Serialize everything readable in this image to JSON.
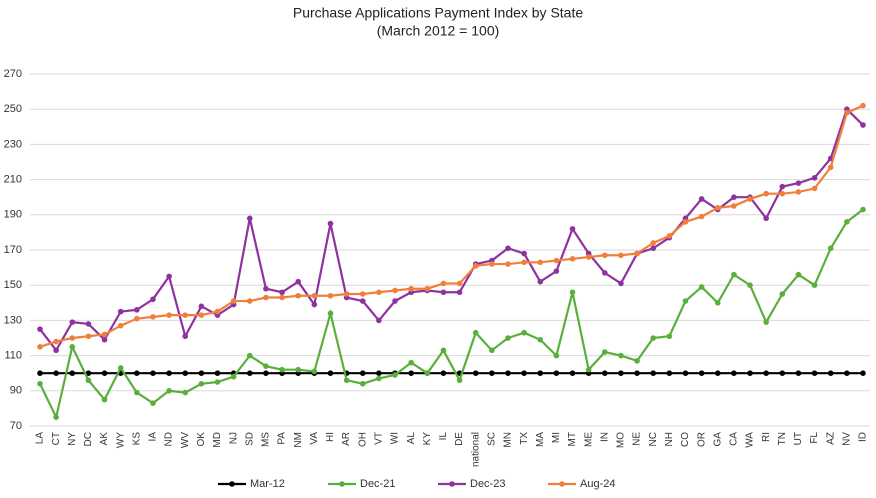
{
  "chart_data": {
    "type": "line",
    "title": "Purchase Applications Payment Index by State",
    "subtitle": "(March 2012 = 100)",
    "categories": [
      "LA",
      "CT",
      "NY",
      "DC",
      "AK",
      "WY",
      "KS",
      "IA",
      "ND",
      "WV",
      "OK",
      "MD",
      "NJ",
      "SD",
      "MS",
      "PA",
      "NM",
      "VA",
      "HI",
      "AR",
      "OH",
      "VT",
      "WI",
      "AL",
      "KY",
      "IL",
      "DE",
      "national",
      "SC",
      "MN",
      "TX",
      "MA",
      "MI",
      "MT",
      "ME",
      "IN",
      "MO",
      "NE",
      "NC",
      "NH",
      "CO",
      "OR",
      "GA",
      "CA",
      "WA",
      "RI",
      "TN",
      "UT",
      "FL",
      "AZ",
      "NV",
      "ID"
    ],
    "series": [
      {
        "name": "Mar-12",
        "color": "#000000",
        "values": [
          100,
          100,
          100,
          100,
          100,
          100,
          100,
          100,
          100,
          100,
          100,
          100,
          100,
          100,
          100,
          100,
          100,
          100,
          100,
          100,
          100,
          100,
          100,
          100,
          100,
          100,
          100,
          100,
          100,
          100,
          100,
          100,
          100,
          100,
          100,
          100,
          100,
          100,
          100,
          100,
          100,
          100,
          100,
          100,
          100,
          100,
          100,
          100,
          100,
          100,
          100,
          100
        ]
      },
      {
        "name": "Dec-21",
        "color": "#5aaf3c",
        "values": [
          94,
          75,
          115,
          96,
          85,
          103,
          89,
          83,
          90,
          89,
          94,
          95,
          98,
          110,
          104,
          102,
          102,
          101,
          134,
          96,
          94,
          97,
          99,
          106,
          100,
          113,
          96,
          123,
          113,
          120,
          123,
          119,
          110,
          146,
          102,
          112,
          110,
          107,
          120,
          121,
          141,
          149,
          140,
          156,
          150,
          129,
          145,
          156,
          150,
          171,
          186,
          193
        ]
      },
      {
        "name": "Dec-23",
        "color": "#8e32a0",
        "values": [
          125,
          113,
          129,
          128,
          119,
          135,
          136,
          142,
          155,
          121,
          138,
          133,
          139,
          188,
          148,
          146,
          152,
          139,
          185,
          143,
          141,
          130,
          141,
          146,
          147,
          146,
          146,
          162,
          164,
          171,
          168,
          152,
          158,
          182,
          168,
          157,
          151,
          168,
          171,
          177,
          188,
          199,
          193,
          200,
          200,
          188,
          206,
          208,
          211,
          222,
          250,
          241
        ]
      },
      {
        "name": "Aug-24",
        "color": "#f07f3c",
        "values": [
          115,
          118,
          120,
          121,
          122,
          127,
          131,
          132,
          133,
          133,
          133,
          135,
          141,
          141,
          143,
          143,
          144,
          144,
          144,
          145,
          145,
          146,
          147,
          148,
          148,
          151,
          151,
          161,
          162,
          162,
          163,
          163,
          164,
          165,
          166,
          167,
          167,
          168,
          174,
          178,
          186,
          189,
          194,
          195,
          199,
          202,
          202,
          203,
          205,
          217,
          248,
          252
        ]
      }
    ],
    "ylim": [
      70,
      270
    ],
    "yticks": [
      70,
      90,
      110,
      130,
      150,
      170,
      190,
      210,
      230,
      250,
      270
    ],
    "grid": true,
    "legend": "bottom"
  }
}
